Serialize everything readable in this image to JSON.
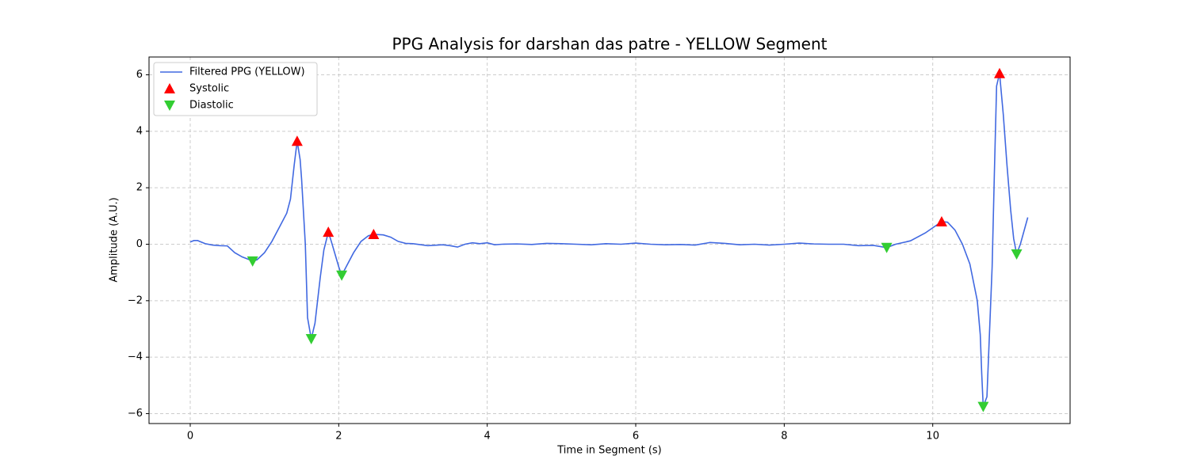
{
  "chart_data": {
    "type": "line",
    "title": "PPG Analysis for darshan das patre - YELLOW Segment",
    "xlabel": "Time in Segment (s)",
    "ylabel": "Amplitude (A.U.)",
    "xlim": [
      -0.555,
      11.85
    ],
    "ylim": [
      -6.35,
      6.63
    ],
    "xticks": [
      0,
      2,
      4,
      6,
      8,
      10
    ],
    "yticks": [
      {
        "value": -6,
        "label": "−6"
      },
      {
        "value": -4,
        "label": "−4"
      },
      {
        "value": -2,
        "label": "−2"
      },
      0,
      2,
      4,
      6
    ],
    "grid": true,
    "legend": "upper left",
    "series": [
      {
        "name": "Filtered PPG (YELLOW)",
        "color": "#4169e1",
        "style": "line",
        "x": [
          0,
          0.05,
          0.1,
          0.2,
          0.3,
          0.4,
          0.5,
          0.6,
          0.7,
          0.8,
          0.84,
          0.9,
          1.0,
          1.1,
          1.2,
          1.3,
          1.35,
          1.4,
          1.44,
          1.48,
          1.5,
          1.55,
          1.58,
          1.63,
          1.68,
          1.75,
          1.8,
          1.86,
          1.9,
          2.0,
          2.04,
          2.1,
          2.2,
          2.3,
          2.4,
          2.47,
          2.6,
          2.7,
          2.8,
          2.9,
          3.0,
          3.2,
          3.4,
          3.5,
          3.6,
          3.7,
          3.8,
          3.9,
          4.0,
          4.1,
          4.2,
          4.4,
          4.6,
          4.8,
          5.0,
          5.2,
          5.4,
          5.6,
          5.8,
          6.0,
          6.2,
          6.4,
          6.6,
          6.8,
          7.0,
          7.2,
          7.4,
          7.6,
          7.8,
          8.0,
          8.2,
          8.4,
          8.6,
          8.8,
          9.0,
          9.2,
          9.38,
          9.5,
          9.7,
          9.9,
          10.12,
          10.2,
          10.3,
          10.4,
          10.5,
          10.6,
          10.64,
          10.66,
          10.68,
          10.73,
          10.8,
          10.83,
          10.86,
          10.9,
          10.95,
          11.0,
          11.05,
          11.09,
          11.13,
          11.18,
          11.28
        ],
        "values": [
          0.08,
          0.13,
          0.13,
          0.02,
          -0.03,
          -0.05,
          -0.06,
          -0.3,
          -0.45,
          -0.55,
          -0.6,
          -0.55,
          -0.3,
          0.1,
          0.6,
          1.1,
          1.6,
          2.8,
          3.65,
          3.0,
          2.3,
          0,
          -2.6,
          -3.35,
          -2.8,
          -1.2,
          -0.2,
          0.43,
          0.1,
          -0.8,
          -1.1,
          -0.8,
          -0.3,
          0.1,
          0.3,
          0.35,
          0.33,
          0.25,
          0.1,
          0.03,
          0.02,
          -0.05,
          -0.02,
          -0.05,
          -0.1,
          0.0,
          0.05,
          0.02,
          0.05,
          -0.02,
          0.0,
          0.01,
          -0.01,
          0.03,
          0.02,
          0.0,
          -0.02,
          0.02,
          0.0,
          0.04,
          0.0,
          -0.02,
          -0.01,
          -0.03,
          0.06,
          0.03,
          -0.02,
          0.0,
          -0.03,
          0.0,
          0.04,
          0.01,
          0.0,
          0.0,
          -0.05,
          -0.04,
          -0.12,
          0.0,
          0.12,
          0.4,
          0.8,
          0.78,
          0.5,
          0.0,
          -0.7,
          -2.0,
          -3.2,
          -4.6,
          -5.75,
          -5.4,
          -0.8,
          2.5,
          5.6,
          6.05,
          4.6,
          2.8,
          1.2,
          0.2,
          -0.35,
          0.0,
          0.95
        ]
      },
      {
        "name": "Systolic",
        "color": "#ff0000",
        "style": "triangle-up",
        "x": [
          1.44,
          1.86,
          2.47,
          10.12,
          10.9
        ],
        "values": [
          3.65,
          0.43,
          0.35,
          0.8,
          6.05
        ]
      },
      {
        "name": "Diastolic",
        "color": "#32cd32",
        "style": "triangle-down",
        "x": [
          0.84,
          1.63,
          2.04,
          9.38,
          10.68,
          11.13
        ],
        "values": [
          -0.6,
          -3.35,
          -1.1,
          -0.12,
          -5.75,
          -0.35
        ]
      }
    ]
  }
}
